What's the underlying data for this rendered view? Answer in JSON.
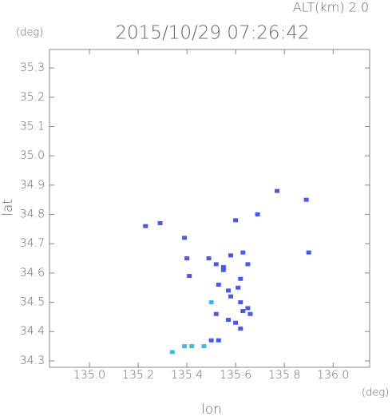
{
  "chart_data": {
    "type": "scatter",
    "title": "2015/10/29 07:26:42",
    "annotation": "ALT(km) 2.0",
    "y_unit": "(deg)",
    "x_unit": "(deg)",
    "x_label": "lon",
    "y_label": "lat",
    "xlim": [
      134.836,
      136.15
    ],
    "ylim": [
      34.278,
      35.363
    ],
    "xticks": [
      {
        "value": 135,
        "label": "135.0"
      },
      135.2,
      135.4,
      135.6,
      135.8,
      {
        "value": 136,
        "label": "136.0"
      }
    ],
    "yticks": [
      34.3,
      34.4,
      34.5,
      34.6,
      34.7,
      34.8,
      34.9,
      {
        "value": 35,
        "label": "35.0"
      },
      35.1,
      35.2,
      35.3
    ],
    "series": [
      {
        "color": "#4a58e8",
        "x": [
          135.23,
          135.29,
          135.39,
          135.4,
          135.41,
          135.49,
          135.52,
          135.55,
          135.6,
          135.69,
          135.77,
          135.89,
          135.9,
          135.53,
          135.57,
          135.58,
          135.62,
          135.63,
          135.6,
          135.62,
          135.53,
          135.5,
          135.62,
          135.55,
          135.58,
          135.63,
          135.65,
          135.61,
          135.52,
          135.57,
          135.65,
          135.66
        ],
        "y": [
          34.76,
          34.77,
          34.72,
          34.65,
          34.59,
          34.65,
          34.63,
          34.62,
          34.78,
          34.8,
          34.88,
          34.85,
          34.67,
          34.56,
          34.54,
          34.52,
          34.5,
          34.47,
          34.43,
          34.41,
          34.37,
          34.37,
          34.58,
          34.61,
          34.66,
          34.67,
          34.63,
          34.55,
          34.46,
          34.44,
          34.48,
          34.46
        ]
      },
      {
        "color": "#3fb8e8",
        "x": [
          135.47,
          135.42,
          135.39,
          135.34,
          135.5
        ],
        "y": [
          34.35,
          34.35,
          34.35,
          34.33,
          34.5
        ]
      }
    ]
  }
}
